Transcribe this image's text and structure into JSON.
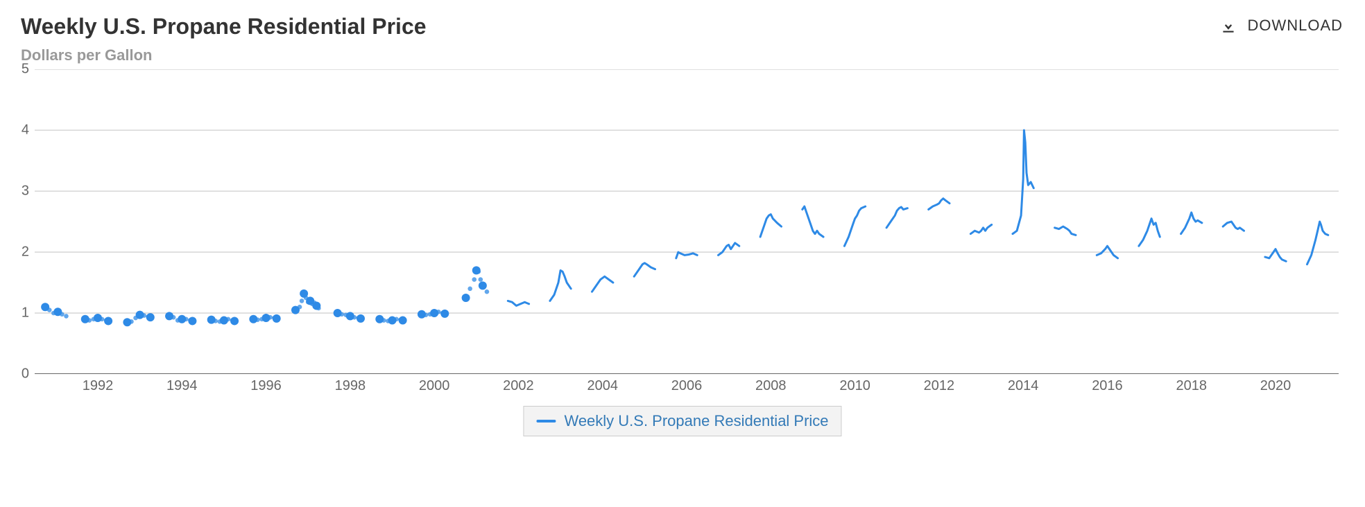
{
  "title": "Weekly U.S. Propane Residential Price",
  "subtitle": "Dollars per Gallon",
  "download_label": "DOWNLOAD",
  "legend_label": "Weekly U.S. Propane Residential Price",
  "chart": {
    "type": "line-with-gaps",
    "xlim": [
      1990.5,
      2021.5
    ],
    "ylim": [
      0,
      5
    ],
    "ytick_step": 1,
    "xtick_step": 2,
    "xtick_start": 1992,
    "xtick_end": 2020,
    "grid_color": "#c0c0c0",
    "grid_width": 1,
    "axis_color": "#333333",
    "background": "#ffffff",
    "tick_label_color": "#666666",
    "tick_fontsize": 20,
    "line_color": "#2e8ae6",
    "line_width": 3,
    "marker_radius": 6,
    "marker_mode_before_year": 2001,
    "segments": [
      {
        "pts": [
          [
            1990.75,
            1.1
          ],
          [
            1990.85,
            1.05
          ],
          [
            1990.95,
            1.0
          ],
          [
            1991.05,
            1.02
          ],
          [
            1991.15,
            0.98
          ],
          [
            1991.25,
            0.95
          ]
        ]
      },
      {
        "pts": [
          [
            1991.7,
            0.9
          ],
          [
            1991.8,
            0.88
          ],
          [
            1991.9,
            0.9
          ],
          [
            1992.0,
            0.92
          ],
          [
            1992.1,
            0.9
          ],
          [
            1992.2,
            0.88
          ],
          [
            1992.25,
            0.87
          ]
        ]
      },
      {
        "pts": [
          [
            1992.7,
            0.85
          ],
          [
            1992.8,
            0.86
          ],
          [
            1992.9,
            0.92
          ],
          [
            1993.0,
            0.97
          ],
          [
            1993.1,
            0.96
          ],
          [
            1993.2,
            0.94
          ],
          [
            1993.25,
            0.93
          ]
        ]
      },
      {
        "pts": [
          [
            1993.7,
            0.95
          ],
          [
            1993.8,
            0.93
          ],
          [
            1993.9,
            0.88
          ],
          [
            1994.0,
            0.9
          ],
          [
            1994.1,
            0.9
          ],
          [
            1994.2,
            0.88
          ],
          [
            1994.25,
            0.87
          ]
        ]
      },
      {
        "pts": [
          [
            1994.7,
            0.89
          ],
          [
            1994.8,
            0.87
          ],
          [
            1994.9,
            0.86
          ],
          [
            1995.0,
            0.88
          ],
          [
            1995.1,
            0.9
          ],
          [
            1995.2,
            0.88
          ],
          [
            1995.25,
            0.87
          ]
        ]
      },
      {
        "pts": [
          [
            1995.7,
            0.9
          ],
          [
            1995.8,
            0.89
          ],
          [
            1995.9,
            0.9
          ],
          [
            1996.0,
            0.92
          ],
          [
            1996.1,
            0.93
          ],
          [
            1996.2,
            0.92
          ],
          [
            1996.25,
            0.91
          ]
        ]
      },
      {
        "pts": [
          [
            1996.7,
            1.05
          ],
          [
            1996.8,
            1.1
          ],
          [
            1996.85,
            1.2
          ],
          [
            1996.9,
            1.32
          ],
          [
            1996.95,
            1.25
          ],
          [
            1997.0,
            1.18
          ],
          [
            1997.05,
            1.2
          ],
          [
            1997.1,
            1.15
          ],
          [
            1997.15,
            1.17
          ],
          [
            1997.2,
            1.12
          ],
          [
            1997.25,
            1.08
          ]
        ]
      },
      {
        "pts": [
          [
            1997.7,
            1.0
          ],
          [
            1997.8,
            0.98
          ],
          [
            1997.9,
            0.97
          ],
          [
            1998.0,
            0.95
          ],
          [
            1998.1,
            0.93
          ],
          [
            1998.2,
            0.92
          ],
          [
            1998.25,
            0.91
          ]
        ]
      },
      {
        "pts": [
          [
            1998.7,
            0.9
          ],
          [
            1998.8,
            0.88
          ],
          [
            1998.9,
            0.87
          ],
          [
            1999.0,
            0.88
          ],
          [
            1999.1,
            0.9
          ],
          [
            1999.2,
            0.89
          ],
          [
            1999.25,
            0.88
          ]
        ]
      },
      {
        "pts": [
          [
            1999.7,
            0.98
          ],
          [
            1999.8,
            0.97
          ],
          [
            1999.9,
            0.98
          ],
          [
            2000.0,
            1.0
          ],
          [
            2000.1,
            1.02
          ],
          [
            2000.2,
            1.0
          ],
          [
            2000.25,
            0.99
          ]
        ]
      },
      {
        "pts": [
          [
            2000.75,
            1.25
          ],
          [
            2000.85,
            1.4
          ],
          [
            2000.95,
            1.55
          ],
          [
            2001.0,
            1.7
          ],
          [
            2001.05,
            1.68
          ],
          [
            2001.1,
            1.55
          ],
          [
            2001.15,
            1.45
          ],
          [
            2001.25,
            1.35
          ]
        ]
      },
      {
        "pts": [
          [
            2001.75,
            1.2
          ],
          [
            2001.85,
            1.18
          ],
          [
            2001.95,
            1.12
          ],
          [
            2002.05,
            1.15
          ],
          [
            2002.15,
            1.18
          ],
          [
            2002.25,
            1.15
          ]
        ]
      },
      {
        "pts": [
          [
            2002.75,
            1.2
          ],
          [
            2002.85,
            1.3
          ],
          [
            2002.95,
            1.5
          ],
          [
            2003.0,
            1.7
          ],
          [
            2003.05,
            1.68
          ],
          [
            2003.1,
            1.6
          ],
          [
            2003.15,
            1.5
          ],
          [
            2003.25,
            1.4
          ]
        ]
      },
      {
        "pts": [
          [
            2003.75,
            1.35
          ],
          [
            2003.85,
            1.45
          ],
          [
            2003.95,
            1.55
          ],
          [
            2004.05,
            1.6
          ],
          [
            2004.15,
            1.55
          ],
          [
            2004.25,
            1.5
          ]
        ]
      },
      {
        "pts": [
          [
            2004.75,
            1.6
          ],
          [
            2004.85,
            1.7
          ],
          [
            2004.95,
            1.8
          ],
          [
            2005.0,
            1.82
          ],
          [
            2005.05,
            1.8
          ],
          [
            2005.15,
            1.75
          ],
          [
            2005.25,
            1.72
          ]
        ]
      },
      {
        "pts": [
          [
            2005.75,
            1.9
          ],
          [
            2005.8,
            2.0
          ],
          [
            2005.85,
            1.98
          ],
          [
            2005.95,
            1.95
          ],
          [
            2006.05,
            1.96
          ],
          [
            2006.15,
            1.98
          ],
          [
            2006.25,
            1.95
          ]
        ]
      },
      {
        "pts": [
          [
            2006.75,
            1.95
          ],
          [
            2006.85,
            2.0
          ],
          [
            2006.95,
            2.1
          ],
          [
            2007.0,
            2.12
          ],
          [
            2007.05,
            2.05
          ],
          [
            2007.15,
            2.15
          ],
          [
            2007.25,
            2.1
          ]
        ]
      },
      {
        "pts": [
          [
            2007.75,
            2.25
          ],
          [
            2007.85,
            2.45
          ],
          [
            2007.9,
            2.55
          ],
          [
            2007.95,
            2.6
          ],
          [
            2008.0,
            2.62
          ],
          [
            2008.05,
            2.55
          ],
          [
            2008.15,
            2.48
          ],
          [
            2008.25,
            2.42
          ]
        ]
      },
      {
        "pts": [
          [
            2008.75,
            2.7
          ],
          [
            2008.8,
            2.75
          ],
          [
            2008.85,
            2.65
          ],
          [
            2008.95,
            2.45
          ],
          [
            2009.0,
            2.35
          ],
          [
            2009.05,
            2.3
          ],
          [
            2009.1,
            2.35
          ],
          [
            2009.15,
            2.3
          ],
          [
            2009.25,
            2.25
          ]
        ]
      },
      {
        "pts": [
          [
            2009.75,
            2.1
          ],
          [
            2009.85,
            2.25
          ],
          [
            2009.95,
            2.45
          ],
          [
            2010.0,
            2.55
          ],
          [
            2010.05,
            2.6
          ],
          [
            2010.1,
            2.68
          ],
          [
            2010.15,
            2.72
          ],
          [
            2010.25,
            2.75
          ]
        ]
      },
      {
        "pts": [
          [
            2010.75,
            2.4
          ],
          [
            2010.85,
            2.5
          ],
          [
            2010.95,
            2.6
          ],
          [
            2011.0,
            2.68
          ],
          [
            2011.05,
            2.72
          ],
          [
            2011.1,
            2.74
          ],
          [
            2011.15,
            2.7
          ],
          [
            2011.25,
            2.72
          ]
        ]
      },
      {
        "pts": [
          [
            2011.75,
            2.7
          ],
          [
            2011.85,
            2.75
          ],
          [
            2011.95,
            2.78
          ],
          [
            2012.0,
            2.8
          ],
          [
            2012.05,
            2.85
          ],
          [
            2012.1,
            2.88
          ],
          [
            2012.15,
            2.85
          ],
          [
            2012.25,
            2.8
          ]
        ]
      },
      {
        "pts": [
          [
            2012.75,
            2.3
          ],
          [
            2012.85,
            2.35
          ],
          [
            2012.95,
            2.32
          ],
          [
            2013.0,
            2.35
          ],
          [
            2013.05,
            2.4
          ],
          [
            2013.1,
            2.35
          ],
          [
            2013.15,
            2.4
          ],
          [
            2013.25,
            2.45
          ]
        ]
      },
      {
        "pts": [
          [
            2013.75,
            2.3
          ],
          [
            2013.85,
            2.35
          ],
          [
            2013.95,
            2.6
          ],
          [
            2014.0,
            3.2
          ],
          [
            2014.02,
            4.0
          ],
          [
            2014.05,
            3.8
          ],
          [
            2014.08,
            3.3
          ],
          [
            2014.12,
            3.1
          ],
          [
            2014.18,
            3.15
          ],
          [
            2014.25,
            3.05
          ]
        ]
      },
      {
        "pts": [
          [
            2014.75,
            2.4
          ],
          [
            2014.85,
            2.38
          ],
          [
            2014.95,
            2.42
          ],
          [
            2015.0,
            2.4
          ],
          [
            2015.05,
            2.38
          ],
          [
            2015.1,
            2.35
          ],
          [
            2015.15,
            2.3
          ],
          [
            2015.25,
            2.28
          ]
        ]
      },
      {
        "pts": [
          [
            2015.75,
            1.95
          ],
          [
            2015.85,
            1.98
          ],
          [
            2015.95,
            2.05
          ],
          [
            2016.0,
            2.1
          ],
          [
            2016.05,
            2.05
          ],
          [
            2016.1,
            2.0
          ],
          [
            2016.15,
            1.95
          ],
          [
            2016.25,
            1.9
          ]
        ]
      },
      {
        "pts": [
          [
            2016.75,
            2.1
          ],
          [
            2016.85,
            2.2
          ],
          [
            2016.95,
            2.35
          ],
          [
            2017.0,
            2.45
          ],
          [
            2017.05,
            2.55
          ],
          [
            2017.1,
            2.45
          ],
          [
            2017.15,
            2.48
          ],
          [
            2017.2,
            2.35
          ],
          [
            2017.25,
            2.25
          ]
        ]
      },
      {
        "pts": [
          [
            2017.75,
            2.3
          ],
          [
            2017.85,
            2.4
          ],
          [
            2017.95,
            2.55
          ],
          [
            2018.0,
            2.65
          ],
          [
            2018.05,
            2.55
          ],
          [
            2018.1,
            2.5
          ],
          [
            2018.15,
            2.52
          ],
          [
            2018.25,
            2.48
          ]
        ]
      },
      {
        "pts": [
          [
            2018.75,
            2.42
          ],
          [
            2018.85,
            2.48
          ],
          [
            2018.95,
            2.5
          ],
          [
            2019.0,
            2.45
          ],
          [
            2019.05,
            2.4
          ],
          [
            2019.1,
            2.38
          ],
          [
            2019.15,
            2.4
          ],
          [
            2019.25,
            2.35
          ]
        ]
      },
      {
        "pts": [
          [
            2019.75,
            1.92
          ],
          [
            2019.85,
            1.9
          ],
          [
            2019.95,
            2.0
          ],
          [
            2020.0,
            2.05
          ],
          [
            2020.05,
            1.98
          ],
          [
            2020.1,
            1.92
          ],
          [
            2020.15,
            1.88
          ],
          [
            2020.25,
            1.85
          ]
        ]
      },
      {
        "pts": [
          [
            2020.75,
            1.8
          ],
          [
            2020.85,
            1.95
          ],
          [
            2020.95,
            2.2
          ],
          [
            2021.0,
            2.35
          ],
          [
            2021.05,
            2.5
          ],
          [
            2021.08,
            2.45
          ],
          [
            2021.12,
            2.35
          ],
          [
            2021.18,
            2.3
          ],
          [
            2021.25,
            2.28
          ]
        ]
      }
    ]
  }
}
